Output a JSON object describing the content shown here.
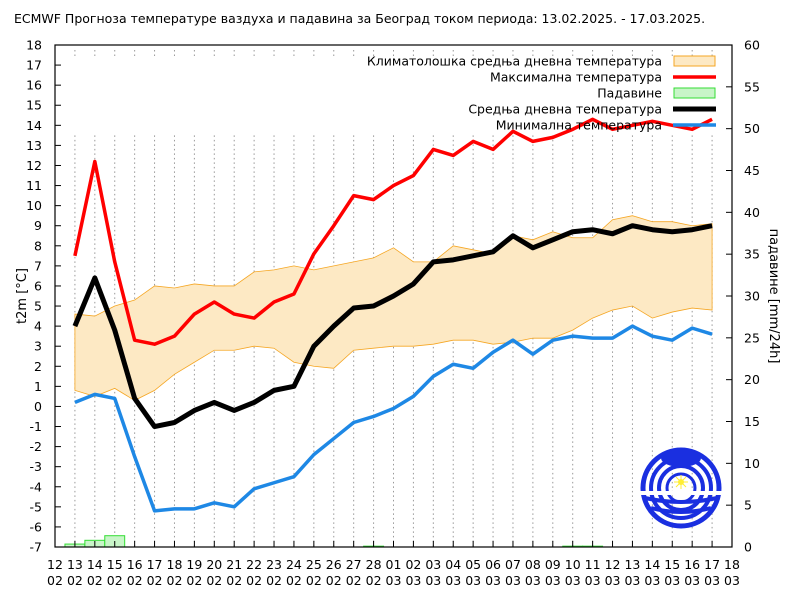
{
  "chart_data": {
    "type": "line",
    "title": "ECMWF Прогноза температуре ваздуха и падавина за Београд током периода: 13.02.2025. - 17.03.2025.",
    "ylabel": "t2m [°C]",
    "y2label": "падавине [mm/24h]",
    "ylim": [
      -7,
      18
    ],
    "y2lim": [
      0,
      60
    ],
    "yticks": [
      "-7",
      "-6",
      "-5",
      "-4",
      "-3",
      "-2",
      "-1",
      "0",
      "1",
      "2",
      "3",
      "4",
      "5",
      "6",
      "7",
      "8",
      "9",
      "10",
      "11",
      "12",
      "13",
      "14",
      "15",
      "16",
      "17",
      "18"
    ],
    "y2ticks": [
      "0",
      "5",
      "10",
      "15",
      "20",
      "25",
      "30",
      "35",
      "40",
      "45",
      "50",
      "55",
      "60"
    ],
    "xtick_days": [
      "12",
      "13",
      "14",
      "15",
      "16",
      "17",
      "18",
      "19",
      "20",
      "21",
      "22",
      "23",
      "24",
      "25",
      "26",
      "27",
      "28",
      "01",
      "02",
      "03",
      "04",
      "05",
      "06",
      "07",
      "08",
      "09",
      "10",
      "11",
      "12",
      "13",
      "14",
      "15",
      "16",
      "17",
      "18"
    ],
    "xtick_months": [
      "02",
      "02",
      "02",
      "02",
      "02",
      "02",
      "02",
      "02",
      "02",
      "02",
      "02",
      "02",
      "02",
      "02",
      "02",
      "02",
      "02",
      "03",
      "03",
      "03",
      "03",
      "03",
      "03",
      "03",
      "03",
      "03",
      "03",
      "03",
      "03",
      "03",
      "03",
      "03",
      "03",
      "03",
      "03"
    ],
    "x": [
      "13.02",
      "14.02",
      "15.02",
      "16.02",
      "17.02",
      "18.02",
      "19.02",
      "20.02",
      "21.02",
      "22.02",
      "23.02",
      "24.02",
      "25.02",
      "26.02",
      "27.02",
      "28.02",
      "01.03",
      "02.03",
      "03.03",
      "04.03",
      "05.03",
      "06.03",
      "07.03",
      "08.03",
      "09.03",
      "10.03",
      "11.03",
      "12.03",
      "13.03",
      "14.03",
      "15.03",
      "16.03",
      "17.03"
    ],
    "grid": "vertical dotted",
    "legend_position": "top-right",
    "series": [
      {
        "name": "Климатолошка средња дневна температура",
        "kind": "band",
        "color": "#f5a623",
        "fill": "#fde9c4",
        "upper": [
          4.6,
          4.5,
          5.0,
          5.3,
          6.0,
          5.9,
          6.1,
          6.0,
          6.0,
          6.7,
          6.8,
          7.0,
          6.8,
          7.0,
          7.2,
          7.4,
          7.9,
          7.2,
          7.2,
          8.0,
          7.8,
          7.6,
          8.5,
          8.3,
          8.7,
          8.4,
          8.4,
          9.3,
          9.5,
          9.2,
          9.2,
          9.0,
          9.1
        ],
        "lower": [
          0.8,
          0.5,
          0.9,
          0.3,
          0.8,
          1.6,
          2.2,
          2.8,
          2.8,
          3.0,
          2.9,
          2.2,
          2.0,
          1.9,
          2.8,
          2.9,
          3.0,
          3.0,
          3.1,
          3.3,
          3.3,
          3.1,
          3.2,
          3.4,
          3.4,
          3.8,
          4.4,
          4.8,
          5.0,
          4.4,
          4.7,
          4.9,
          4.8
        ]
      },
      {
        "name": "Максимална температура",
        "kind": "line",
        "color": "#ff0000",
        "values": [
          7.5,
          12.2,
          7.2,
          3.3,
          3.1,
          3.5,
          4.6,
          5.2,
          4.6,
          4.4,
          5.2,
          5.6,
          7.6,
          9.0,
          10.5,
          10.3,
          11.0,
          11.5,
          12.8,
          12.5,
          13.2,
          12.8,
          13.7,
          13.2,
          13.4,
          13.8,
          14.3,
          13.8,
          14.0,
          14.2,
          14.0,
          13.8,
          14.3
        ]
      },
      {
        "name": "Падавине",
        "kind": "bar",
        "axis": "right",
        "color": "#33dd33",
        "fill": "#c8f5c8",
        "values": [
          0.35,
          0.8,
          1.35,
          0,
          0,
          0,
          0,
          0,
          0,
          0,
          0,
          0,
          0,
          0,
          0,
          0.1,
          0,
          0,
          0,
          0,
          0,
          0,
          0,
          0,
          0,
          0.1,
          0.1,
          0,
          0,
          0,
          0,
          0,
          0
        ]
      },
      {
        "name": "Средња дневна температура",
        "kind": "line",
        "color": "#000000",
        "values": [
          4.0,
          6.4,
          3.8,
          0.4,
          -1.0,
          -0.8,
          -0.2,
          0.2,
          -0.2,
          0.2,
          0.8,
          1.0,
          3.0,
          4.0,
          4.9,
          5.0,
          5.5,
          6.1,
          7.2,
          7.3,
          7.5,
          7.7,
          8.5,
          7.9,
          8.3,
          8.7,
          8.8,
          8.6,
          9.0,
          8.8,
          8.7,
          8.8,
          9.0
        ]
      },
      {
        "name": "Минимална температура",
        "kind": "line",
        "color": "#1e88e5",
        "values": [
          0.2,
          0.6,
          0.4,
          -2.5,
          -5.2,
          -5.1,
          -5.1,
          -4.8,
          -5.0,
          -4.1,
          -3.8,
          -3.5,
          -2.4,
          -1.6,
          -0.8,
          -0.5,
          -0.1,
          0.5,
          1.5,
          2.1,
          1.9,
          2.7,
          3.3,
          2.6,
          3.3,
          3.5,
          3.4,
          3.4,
          4.0,
          3.5,
          3.3,
          3.9,
          3.6
        ]
      }
    ]
  }
}
